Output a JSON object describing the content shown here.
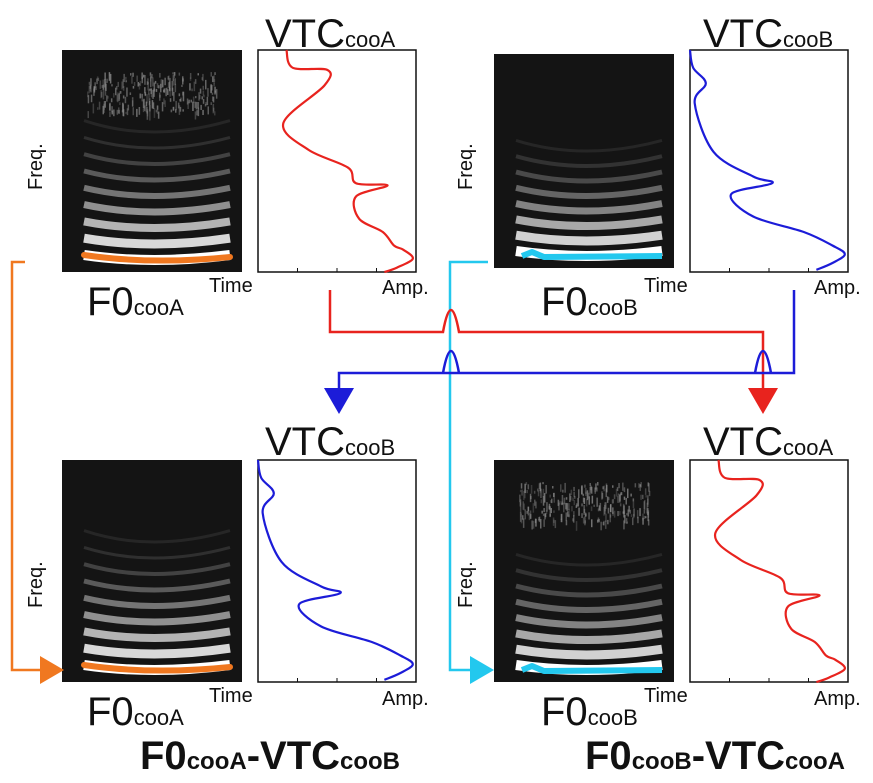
{
  "axis": {
    "freq": "Freq.",
    "time": "Time",
    "amp": "Amp."
  },
  "panels": [
    {
      "id": "tl",
      "vtc_main": "VTC",
      "vtc_sub": "cooA",
      "f0_main": "F0",
      "f0_sub": "cooA",
      "envelope": "cooA",
      "envelope_color": "#e8231e",
      "f0_contour": "cooA",
      "f0_color": "#f07820"
    },
    {
      "id": "tr",
      "vtc_main": "VTC",
      "vtc_sub": "cooB",
      "f0_main": "F0",
      "f0_sub": "cooB",
      "envelope": "cooB",
      "envelope_color": "#1c1cd8",
      "f0_contour": "cooB",
      "f0_color": "#23c8ee"
    },
    {
      "id": "bl",
      "vtc_main": "VTC",
      "vtc_sub": "cooB",
      "f0_main": "F0",
      "f0_sub": "cooA",
      "envelope": "cooB",
      "envelope_color": "#1c1cd8",
      "f0_contour": "cooA",
      "f0_color": "#f07820"
    },
    {
      "id": "br",
      "vtc_main": "VTC",
      "vtc_sub": "cooA",
      "f0_main": "F0",
      "f0_sub": "cooB",
      "envelope": "cooA",
      "envelope_color": "#e8231e",
      "f0_contour": "cooB",
      "f0_color": "#23c8ee"
    }
  ],
  "captions": [
    {
      "a_main": "F0",
      "a_sub": "cooA",
      "sep": "-",
      "b_main": "VTC",
      "b_sub": "cooB"
    },
    {
      "a_main": "F0",
      "a_sub": "cooB",
      "sep": "-",
      "b_main": "VTC",
      "b_sub": "cooA"
    }
  ],
  "colors": {
    "orange": "#f07820",
    "cyan": "#23c8ee",
    "red": "#e8231e",
    "blue": "#1c1cd8",
    "spectrogram_bg": "#141414"
  }
}
